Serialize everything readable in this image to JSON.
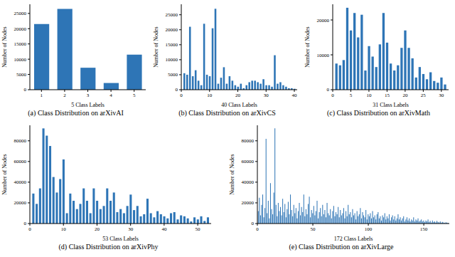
{
  "chart_data": [
    {
      "type": "bar",
      "title": "(a) Class Distribution on arXivAI",
      "x_label": "5 Class Labels",
      "y_label": "Number of Nodes",
      "color": "#2e75b6",
      "x": [
        1,
        2,
        3,
        4,
        5
      ],
      "values": [
        21500,
        26500,
        7200,
        2200,
        11500
      ],
      "xlim": [
        0.5,
        5.5
      ],
      "xticks": [
        1,
        2,
        3,
        4,
        5
      ],
      "ylim": [
        0,
        28000
      ],
      "yticks": [
        0,
        5000,
        10000,
        15000,
        20000,
        25000
      ]
    },
    {
      "type": "bar",
      "title": "(b) Class Distribution on arXivCS",
      "x_label": "40 Class Labels",
      "y_label": "Number of Nodes",
      "color": "#2e75b6",
      "x": [
        1,
        2,
        3,
        4,
        5,
        6,
        7,
        8,
        9,
        10,
        11,
        12,
        13,
        14,
        15,
        16,
        17,
        18,
        19,
        20,
        21,
        22,
        23,
        24,
        25,
        26,
        27,
        28,
        29,
        30,
        31,
        32,
        33,
        34,
        35,
        36,
        37,
        38,
        39,
        40
      ],
      "values": [
        5500,
        5000,
        21000,
        4500,
        6500,
        3000,
        1500,
        22000,
        5000,
        4500,
        20500,
        27000,
        2000,
        4000,
        7500,
        2000,
        4500,
        3000,
        1500,
        1000,
        2000,
        500,
        1500,
        2500,
        3000,
        3000,
        2500,
        2000,
        3500,
        1500,
        1500,
        1000,
        11500,
        2000,
        2500,
        1500,
        1000,
        500,
        500,
        300
      ],
      "xlim": [
        0,
        41
      ],
      "xticks": [
        0,
        10,
        20,
        30,
        40
      ],
      "ylim": [
        0,
        28500
      ],
      "yticks": [
        0,
        5000,
        10000,
        15000,
        20000,
        25000
      ]
    },
    {
      "type": "bar",
      "title": "(c) Class Distribution on arXivMath",
      "x_label": "31 Class Labels",
      "y_label": "Number of Nodes",
      "color": "#2e75b6",
      "x": [
        1,
        2,
        3,
        4,
        5,
        6,
        7,
        8,
        9,
        10,
        11,
        12,
        13,
        14,
        15,
        16,
        17,
        18,
        19,
        20,
        21,
        22,
        23,
        24,
        25,
        26,
        27,
        28,
        29,
        30,
        31
      ],
      "values": [
        7500,
        7000,
        8500,
        23500,
        17000,
        22000,
        15000,
        21500,
        5500,
        12500,
        9500,
        6500,
        13000,
        22000,
        13500,
        7500,
        5500,
        7000,
        12000,
        17000,
        12000,
        9000,
        3500,
        6500,
        4500,
        3000,
        5000,
        2500,
        2000,
        3500,
        1500
      ],
      "xlim": [
        0,
        32
      ],
      "xticks": [
        0,
        5,
        10,
        15,
        20,
        25,
        30
      ],
      "ylim": [
        0,
        24500
      ],
      "yticks": [
        0,
        10000,
        20000
      ]
    },
    {
      "type": "bar",
      "title": "(d) Class Distribution on arXivPhy",
      "x_label": "53 Class Labels",
      "y_label": "Number of Nodes",
      "color": "#2e75b6",
      "x": [
        1,
        2,
        3,
        4,
        5,
        6,
        7,
        8,
        9,
        10,
        11,
        12,
        13,
        14,
        15,
        16,
        17,
        18,
        19,
        20,
        21,
        22,
        23,
        24,
        25,
        26,
        27,
        28,
        29,
        30,
        31,
        32,
        33,
        34,
        35,
        36,
        37,
        38,
        39,
        40,
        41,
        42,
        43,
        44,
        45,
        46,
        47,
        48,
        49,
        50,
        51,
        52,
        53
      ],
      "values": [
        29000,
        19000,
        34000,
        92000,
        85000,
        75000,
        45000,
        30000,
        43000,
        62000,
        10000,
        29000,
        22000,
        14000,
        19000,
        34000,
        22000,
        10000,
        34000,
        22000,
        14000,
        17000,
        34000,
        22000,
        30000,
        11000,
        14000,
        10000,
        17000,
        28000,
        13000,
        17000,
        7000,
        9000,
        24000,
        10000,
        6000,
        12000,
        9000,
        7000,
        5000,
        10000,
        11000,
        4000,
        8000,
        7000,
        5000,
        2000,
        6000,
        4000,
        7000,
        2500,
        6000
      ],
      "xlim": [
        0,
        54
      ],
      "xticks": [
        0,
        10,
        20,
        30,
        40,
        50
      ],
      "ylim": [
        0,
        95000
      ],
      "yticks": [
        0,
        20000,
        40000,
        60000,
        80000
      ]
    },
    {
      "type": "bar",
      "title": "(e) Class Distribution on arXivLarge",
      "x_label": "172 Class Labels",
      "y_label": "Number of Nodes",
      "color": "#2e75b6",
      "x": [
        1,
        2,
        3,
        4,
        5,
        6,
        7,
        8,
        9,
        10,
        11,
        12,
        13,
        14,
        15,
        16,
        17,
        18,
        19,
        20,
        21,
        22,
        23,
        24,
        25,
        26,
        27,
        28,
        29,
        30,
        31,
        32,
        33,
        34,
        35,
        36,
        37,
        38,
        39,
        40,
        41,
        42,
        43,
        44,
        45,
        46,
        47,
        48,
        49,
        50,
        51,
        52,
        53,
        54,
        55,
        56,
        57,
        58,
        59,
        60,
        61,
        62,
        63,
        64,
        65,
        66,
        67,
        68,
        69,
        70,
        71,
        72,
        73,
        74,
        75,
        76,
        77,
        78,
        79,
        80,
        81,
        82,
        83,
        84,
        85,
        86,
        87,
        88,
        89,
        90,
        91,
        92,
        93,
        94,
        95,
        96,
        97,
        98,
        99,
        100,
        101,
        102,
        103,
        104,
        105,
        106,
        107,
        108,
        109,
        110,
        111,
        112,
        113,
        114,
        115,
        116,
        117,
        118,
        119,
        120,
        121,
        122,
        123,
        124,
        125,
        126,
        127,
        128,
        129,
        130,
        131,
        132,
        133,
        134,
        135,
        136,
        137,
        138,
        139,
        140,
        141,
        142,
        143,
        144,
        145,
        146,
        147,
        148,
        149,
        150,
        151,
        152,
        153,
        154,
        155,
        156,
        157,
        158,
        159,
        160,
        161,
        162,
        163,
        164,
        165,
        166,
        167,
        168,
        169,
        170,
        171,
        172
      ],
      "values": [
        12000,
        25000,
        8000,
        18000,
        28000,
        6000,
        15000,
        82000,
        10000,
        22000,
        5000,
        39000,
        14000,
        9000,
        30000,
        92000,
        18000,
        7000,
        20000,
        12000,
        16000,
        8000,
        24000,
        11000,
        19000,
        6000,
        14000,
        21000,
        9000,
        28000,
        13000,
        7000,
        18000,
        10000,
        15000,
        5000,
        12000,
        20000,
        8000,
        16000,
        11000,
        28000,
        7000,
        14000,
        9000,
        19000,
        26000,
        6000,
        13000,
        10000,
        17000,
        8000,
        12000,
        22000,
        5000,
        11000,
        15000,
        7000,
        18000,
        9000,
        13000,
        6000,
        20000,
        10000,
        8000,
        14000,
        5000,
        12000,
        17000,
        7000,
        11000,
        9000,
        16000,
        6000,
        13000,
        8000,
        10000,
        15000,
        5000,
        12000,
        7000,
        18000,
        9000,
        11000,
        6000,
        14000,
        8000,
        10000,
        4000,
        12000,
        7000,
        9000,
        15000,
        5000,
        11000,
        8000,
        6000,
        13000,
        4000,
        9000,
        7000,
        10000,
        5000,
        12000,
        6000,
        8000,
        4000,
        9000,
        11000,
        5000,
        7000,
        3000,
        8000,
        6000,
        10000,
        4000,
        7000,
        5000,
        9000,
        3000,
        6000,
        8000,
        4000,
        7000,
        3000,
        5000,
        9000,
        4000,
        6000,
        3000,
        5000,
        7000,
        2000,
        4000,
        6000,
        3000,
        5000,
        2000,
        4000,
        3000,
        6000,
        2000,
        4000,
        3000,
        5000,
        2000,
        3000,
        4000,
        2000,
        3000,
        1500,
        3000,
        2000,
        4000,
        1500,
        2500,
        1000,
        3000,
        1500,
        2000,
        1000,
        2500,
        1500,
        1000,
        2000,
        800,
        1500,
        1000,
        600,
        1200,
        800,
        500
      ],
      "xlim": [
        0,
        173
      ],
      "xticks": [
        0,
        50,
        100,
        150
      ],
      "ylim": [
        0,
        95000
      ],
      "yticks": [
        0,
        20000,
        40000,
        60000,
        80000
      ]
    }
  ]
}
